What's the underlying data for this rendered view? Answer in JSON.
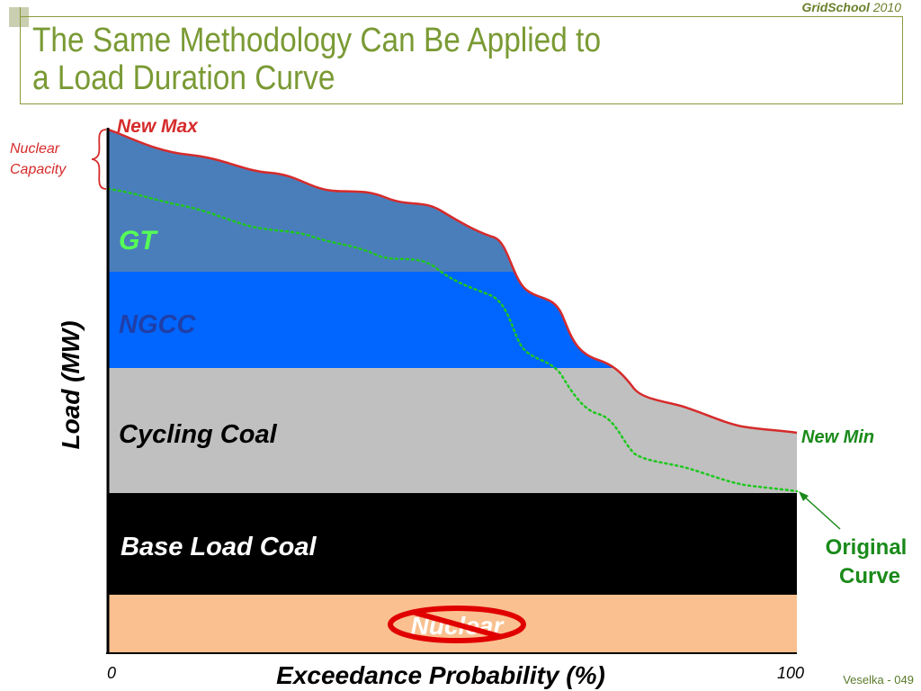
{
  "slide": {
    "brand_bold": "GridSchool",
    "brand_year": "2010",
    "title": "The Same Methodology Can Be Applied to\na Load Duration Curve",
    "footer": "Veselka  - 049"
  },
  "chart": {
    "bands": {
      "gt": "GT",
      "ngcc": "NGCC",
      "cycling_coal": "Cycling Coal",
      "base_load_coal": "Base Load Coal",
      "nuclear": "Nuclear"
    },
    "annotations": {
      "new_max": "New Max",
      "new_min": "New Min",
      "nuclear_capacity_line1": "Nuclear",
      "nuclear_capacity_line2": "Capacity",
      "original_curve_line1": "Original",
      "original_curve_line2": "Curve"
    },
    "x_axis": {
      "label": "Exceedance Probability (%)",
      "min_label": "0",
      "max_label": "100"
    },
    "y_axis": {
      "label": "Load (MW)"
    },
    "colors": {
      "gt": "#4a7ebb",
      "ngcc": "#0066ff",
      "cycling_coal": "#c0c0c0",
      "base_load_coal": "#000000",
      "nuclear": "#fac090",
      "new_curve": "#d62b2b",
      "original_curve": "#1ec81e",
      "title": "#7a9a34"
    }
  }
}
